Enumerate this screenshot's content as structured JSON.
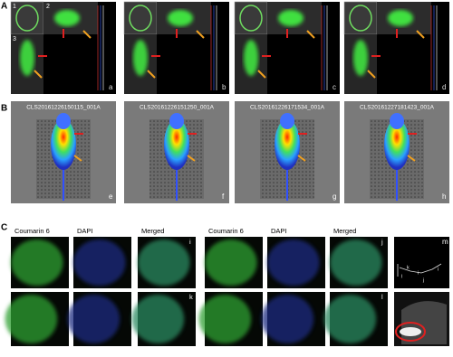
{
  "section_a": {
    "label": "A",
    "inset_numbers": [
      "1",
      "2",
      "3"
    ],
    "panel_letters": [
      "a",
      "b",
      "c",
      "d"
    ]
  },
  "section_b": {
    "label": "B",
    "captions": [
      "CLS20161226150115_001A",
      "CLS20161226151250_001A",
      "CLS20161226171534_001A",
      "CLS20161227181423_001A"
    ],
    "panel_letters": [
      "e",
      "f",
      "g",
      "h"
    ]
  },
  "section_c": {
    "label": "C",
    "column_headers": [
      "Coumarin 6",
      "DAPI",
      "Merged",
      "Coumarin 6",
      "DAPI",
      "Merged"
    ],
    "panel_letters": [
      "i",
      "j",
      "k",
      "l",
      "m"
    ],
    "m_labels": [
      "k",
      "i",
      "l",
      "j",
      "i"
    ]
  }
}
